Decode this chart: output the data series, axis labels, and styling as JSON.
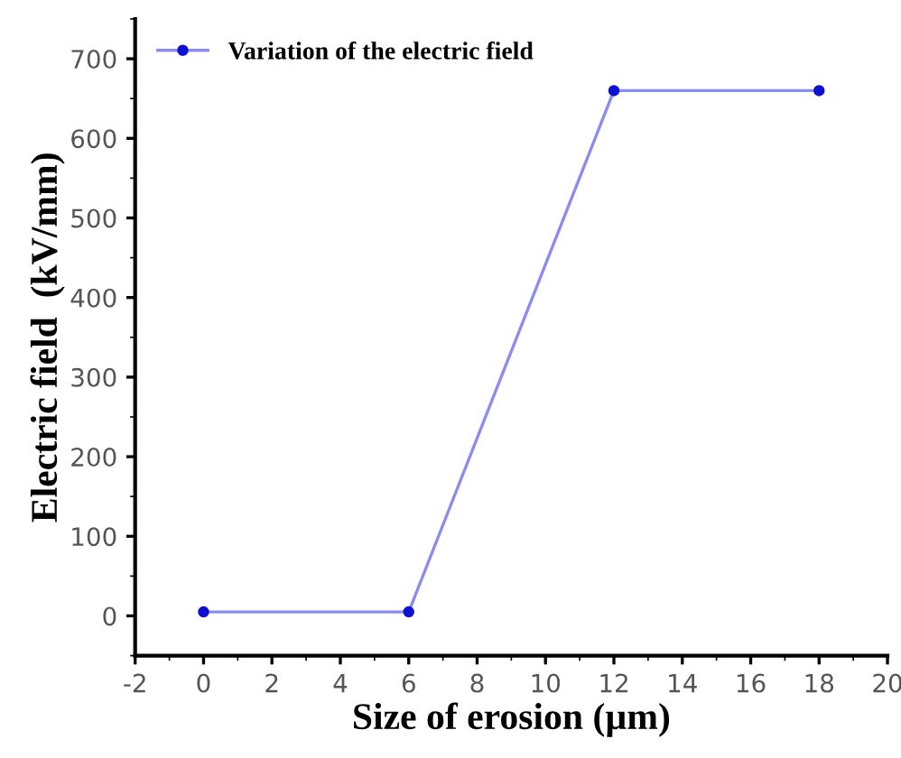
{
  "chart_data": {
    "type": "line",
    "xlabel": "Size of erosion (µm)",
    "ylabel": "Electric field  (kV/mm)",
    "x": [
      0,
      6,
      12,
      18
    ],
    "series": [
      {
        "name": "Variation of the electric field",
        "color": "#8c8cf0",
        "values": [
          5,
          5,
          660,
          660
        ]
      }
    ],
    "marker": "circle",
    "line_style": "solid",
    "xlim": [
      -2,
      20
    ],
    "xticks": [
      -2,
      0,
      2,
      4,
      6,
      8,
      10,
      12,
      14,
      16,
      18,
      20
    ],
    "ylim": [
      -50,
      750
    ],
    "yticks": [
      0,
      100,
      200,
      300,
      400,
      500,
      600,
      700
    ],
    "grid": false,
    "legend": "top left"
  }
}
